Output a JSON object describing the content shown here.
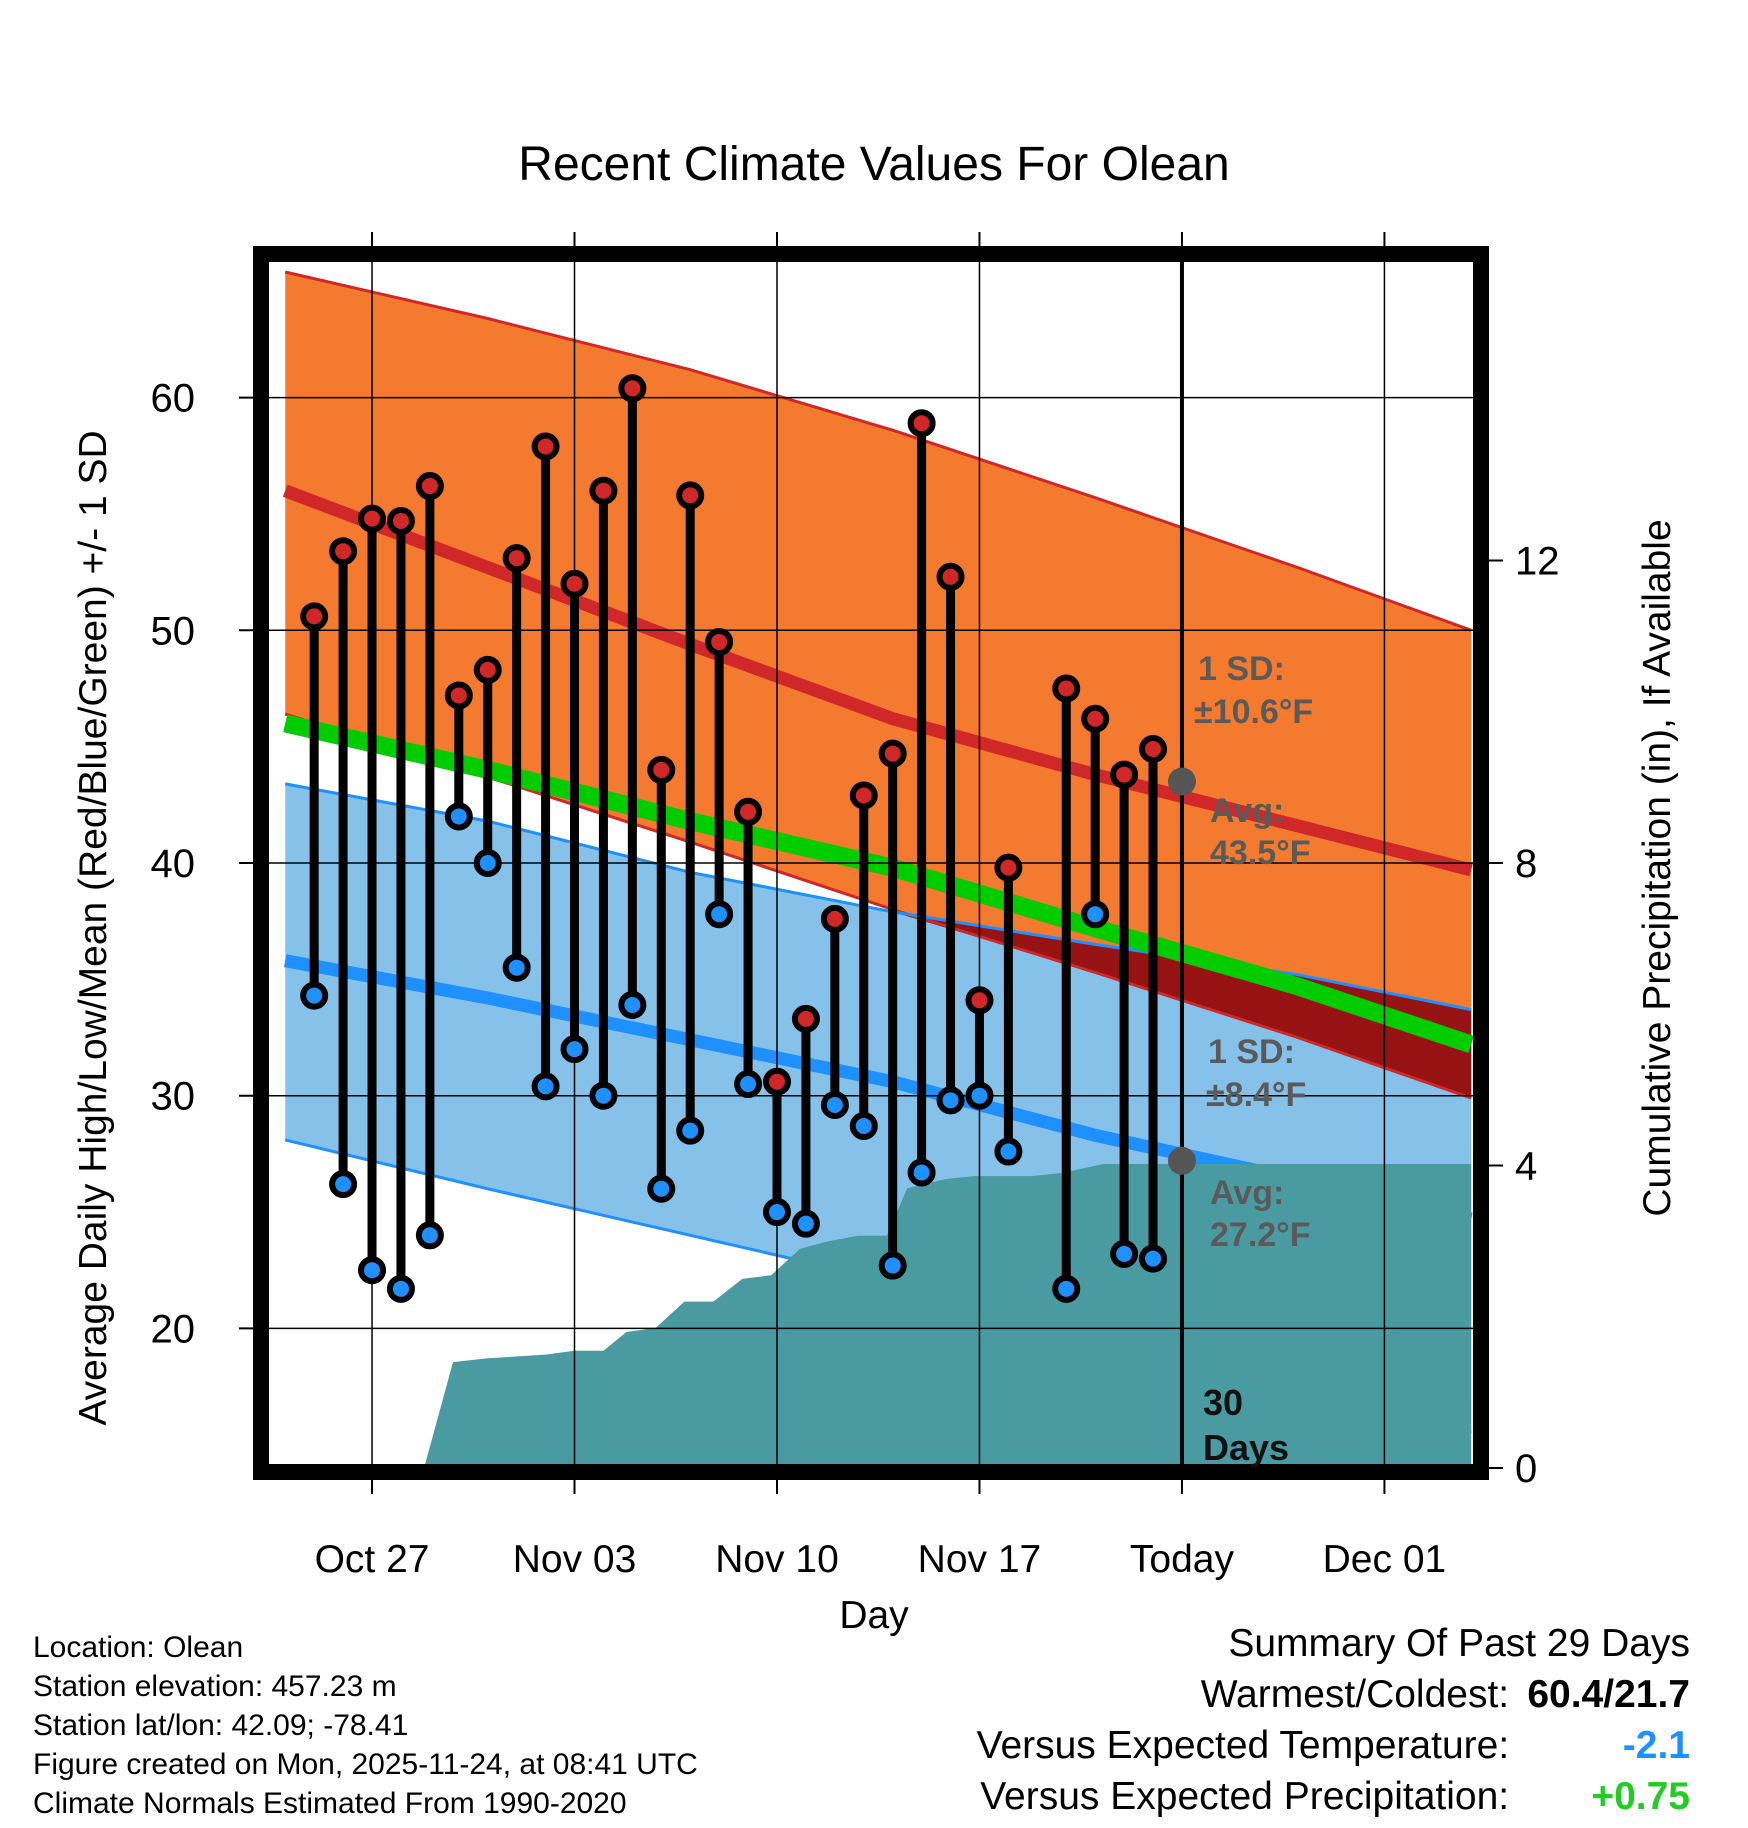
{
  "chart_data": {
    "type": "line",
    "title": "Recent Climate Values For Olean",
    "xlabel": "Day",
    "ylabel": "Average Daily High/Low/Mean (Red/Blue/Green) +/- 1 SD",
    "y2label": "Cumulative Precipitation (in), If Available",
    "ylim": [
      14,
      66
    ],
    "y2lim": [
      0,
      16
    ],
    "xlim": [
      -0.7,
      41.2
    ],
    "x_ticks": [
      {
        "x": 3,
        "label": "Oct 27"
      },
      {
        "x": 10,
        "label": "Nov 03"
      },
      {
        "x": 17,
        "label": "Nov 10"
      },
      {
        "x": 24,
        "label": "Nov 17"
      },
      {
        "x": 31,
        "label": "Today"
      },
      {
        "x": 38,
        "label": "Dec 01"
      }
    ],
    "y_ticks": [
      20,
      30,
      40,
      50,
      60
    ],
    "y2_ticks": [
      0,
      4,
      8,
      12
    ],
    "day_index_note": "x = days since Oct 24",
    "normals": {
      "x": [
        0,
        7,
        14,
        21,
        28,
        35,
        41
      ],
      "high_mean": [
        56.0,
        52.7,
        49.4,
        46.2,
        43.8,
        41.6,
        39.7
      ],
      "high_plus_sd": [
        65.4,
        63.4,
        61.2,
        58.6,
        55.7,
        52.7,
        50.0
      ],
      "high_minus_sd": [
        46.4,
        43.7,
        40.9,
        38.0,
        35.3,
        32.5,
        29.9
      ],
      "low_mean": [
        35.8,
        34.2,
        32.4,
        30.6,
        28.3,
        26.4,
        24.7
      ],
      "low_plus_sd": [
        43.4,
        41.8,
        39.6,
        37.9,
        36.5,
        35.2,
        33.7
      ],
      "low_minus_sd": [
        28.1,
        26.0,
        24.0,
        22.0,
        19.8,
        17.7,
        15.5
      ],
      "mean": [
        46.0,
        44.0,
        41.8,
        39.8,
        37.2,
        34.7,
        32.2
      ]
    },
    "series": [
      {
        "name": "Daily High",
        "color": "#d42a2a",
        "x": [
          1,
          2,
          3,
          4,
          5,
          6,
          7,
          8,
          9,
          10,
          11,
          12,
          13,
          14,
          15,
          16,
          17,
          18,
          19,
          20,
          21,
          22,
          23,
          24,
          25,
          27,
          28,
          29,
          30
        ],
        "values": [
          50.6,
          53.4,
          54.8,
          54.7,
          56.2,
          47.2,
          48.3,
          53.1,
          57.9,
          52.0,
          56.0,
          60.4,
          44.0,
          55.8,
          49.5,
          42.2,
          30.6,
          33.3,
          37.6,
          42.9,
          44.7,
          58.9,
          52.3,
          34.1,
          39.8,
          47.5,
          46.2,
          43.8,
          44.9
        ]
      },
      {
        "name": "Daily Low",
        "color": "#1e90ff",
        "x": [
          1,
          2,
          3,
          4,
          5,
          6,
          7,
          8,
          9,
          10,
          11,
          12,
          13,
          14,
          15,
          16,
          17,
          18,
          19,
          20,
          21,
          22,
          23,
          24,
          25,
          27,
          28,
          29,
          30
        ],
        "values": [
          34.3,
          26.2,
          22.5,
          21.7,
          24.0,
          42.0,
          40.0,
          35.5,
          30.4,
          32.0,
          30.0,
          33.9,
          26.0,
          28.5,
          37.8,
          30.5,
          25.0,
          24.5,
          29.6,
          28.7,
          22.7,
          26.7,
          29.8,
          30.0,
          27.6,
          21.7,
          37.8,
          23.2,
          23.0
        ]
      },
      {
        "name": "Cumulative Precipitation",
        "color": "#4a9aa2",
        "x": [
          4.8,
          5.8,
          7,
          9,
          10,
          11,
          11.8,
          12.8,
          13.8,
          14.8,
          15.8,
          16.8,
          17.8,
          18.8,
          19.8,
          20.8,
          21.5,
          22.8,
          23.8,
          24.8,
          25.8,
          26.8,
          28.3,
          30,
          41
        ],
        "values": [
          0,
          1.4,
          1.45,
          1.5,
          1.55,
          1.55,
          1.8,
          1.85,
          2.2,
          2.2,
          2.5,
          2.55,
          2.9,
          3.0,
          3.07,
          3.07,
          3.7,
          3.82,
          3.86,
          3.86,
          3.86,
          3.9,
          4.02,
          4.02,
          4.02
        ]
      }
    ],
    "annotations": {
      "high_sd_label": "1 SD:",
      "high_sd_value": "±10.6°F",
      "high_avg_label": "Avg:",
      "high_avg_value": "43.5°F",
      "high_avg_marker": 43.5,
      "low_sd_label": "1 SD:",
      "low_sd_value": "±8.4°F",
      "low_avg_label": "Avg:",
      "low_avg_value": "27.2°F",
      "low_avg_marker": 27.2,
      "period_label_line1": "30",
      "period_label_line2": "Days"
    },
    "colors": {
      "high_band": "#f47a30",
      "high_line": "#d02828",
      "low_band": "#85c1e9",
      "low_line": "#1e90ff",
      "mean_line": "#00cc00",
      "overlap": "#971212",
      "precip": "#4a9aa2",
      "annotation": "#5a5a5a"
    }
  },
  "footer": {
    "location": "Location: Olean",
    "elevation": "Station elevation: 457.23 m",
    "latlon": "Station lat/lon: 42.09; -78.41",
    "created": "Figure created on Mon, 2025-11-24, at 08:41 UTC",
    "normals": "Climate Normals Estimated From 1990-2020"
  },
  "summary": {
    "title": "Summary Of Past 29 Days",
    "warm_cold_label": "Warmest/Coldest:",
    "warm_cold_value": "60.4/21.7",
    "temp_label": "Versus Expected Temperature:",
    "temp_value": "-2.1",
    "temp_color": "#1e90ff",
    "precip_label": "Versus Expected Precipitation:",
    "precip_value": "+0.75",
    "precip_color": "#22cc22"
  }
}
